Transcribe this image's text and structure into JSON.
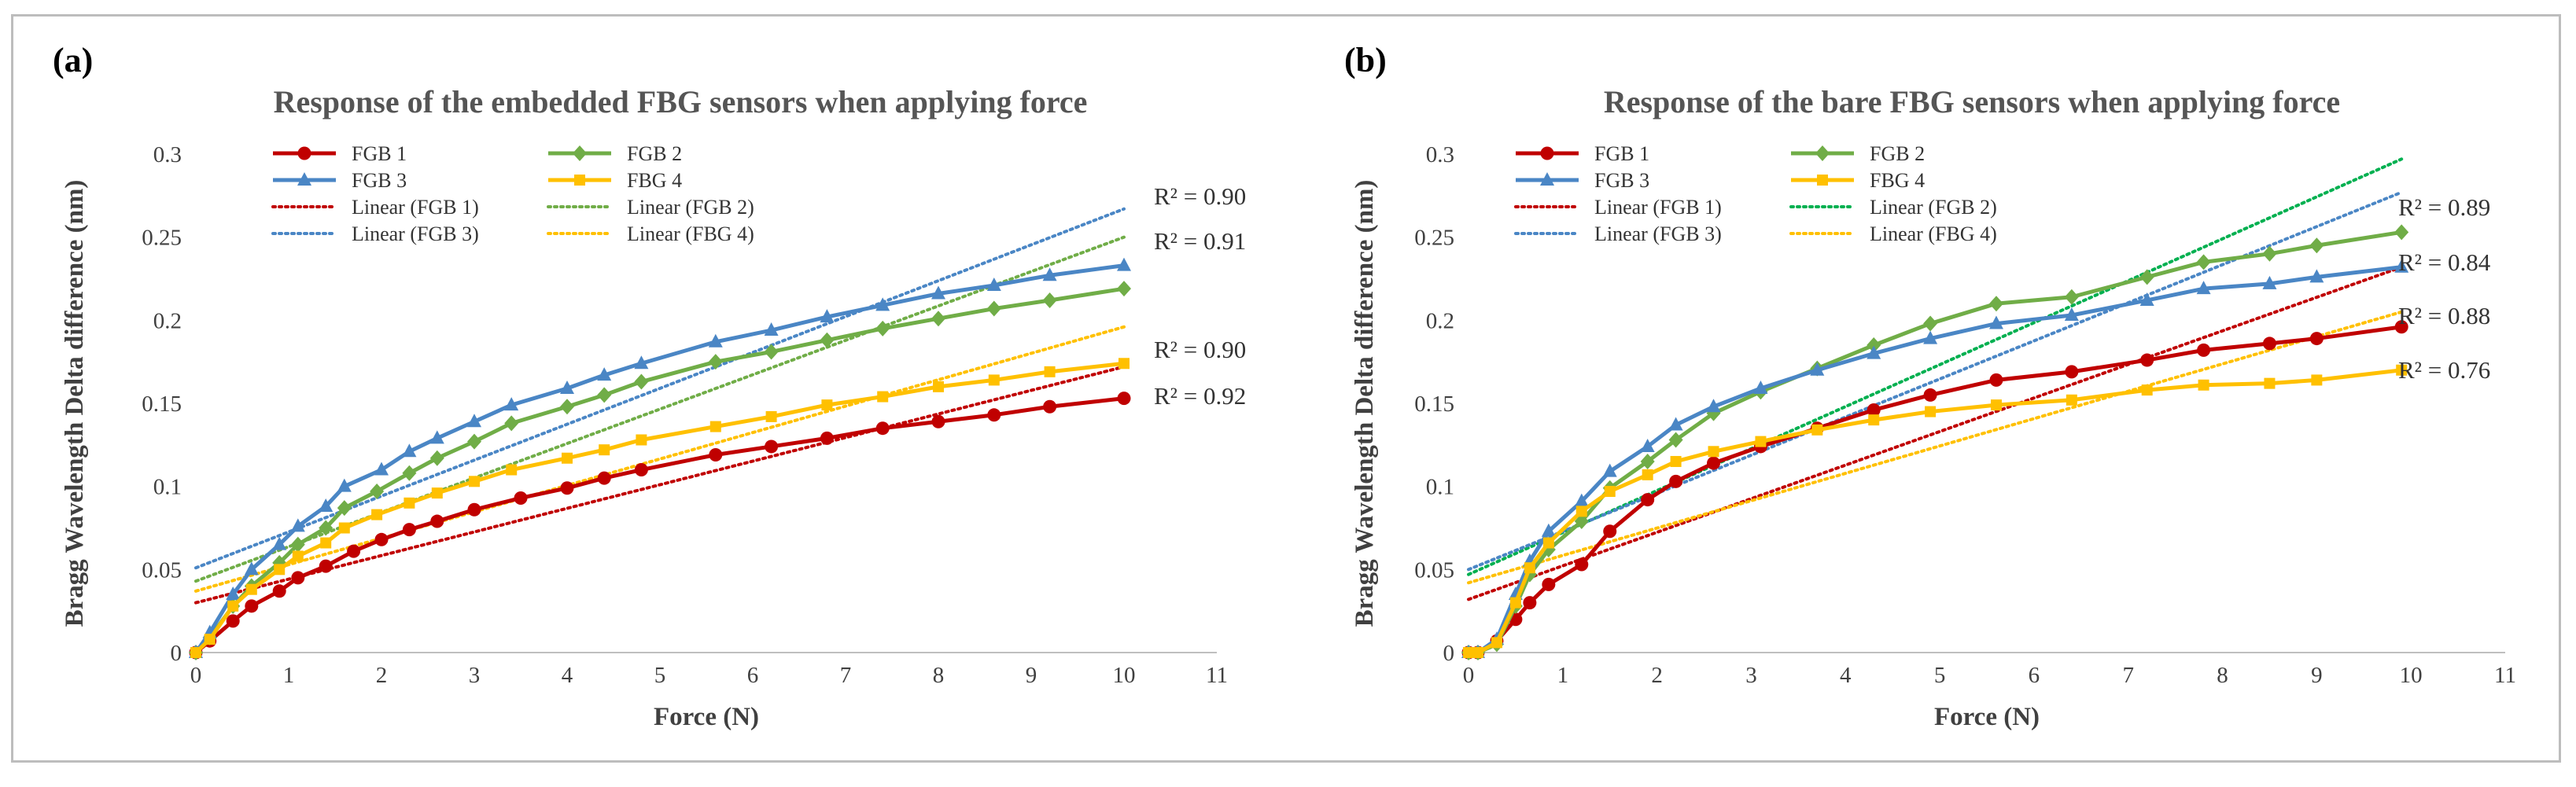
{
  "chart_data": [
    {
      "type": "line",
      "panel_label": "(a)",
      "title": "Response of the embedded FBG sensors when applying force",
      "xlabel": "Force (N)",
      "ylabel": "Bragg Wavelength Delta difference (nm)",
      "xlim": [
        0,
        11
      ],
      "ylim": [
        0,
        0.3
      ],
      "xticks": [
        "0",
        "1",
        "2",
        "3",
        "4",
        "5",
        "6",
        "7",
        "8",
        "9",
        "10",
        "11"
      ],
      "yticks": [
        "0",
        "0.05",
        "0.1",
        "0.15",
        "0.2",
        "0.25",
        "0.3"
      ],
      "grid": false,
      "legend_position": "top-left",
      "series": [
        {
          "name": "FGB 1",
          "color": "#c00000",
          "marker": "circle",
          "x": [
            0,
            0.15,
            0.4,
            0.6,
            0.9,
            1.1,
            1.4,
            1.7,
            2.0,
            2.3,
            2.6,
            3.0,
            3.5,
            4.0,
            4.4,
            4.8,
            5.6,
            6.2,
            6.8,
            7.4,
            8.0,
            8.6,
            9.2,
            10.0
          ],
          "y": [
            0,
            0.007,
            0.019,
            0.028,
            0.037,
            0.045,
            0.052,
            0.061,
            0.068,
            0.074,
            0.079,
            0.086,
            0.093,
            0.099,
            0.105,
            0.11,
            0.119,
            0.124,
            0.129,
            0.135,
            0.139,
            0.143,
            0.148,
            0.153
          ]
        },
        {
          "name": "FGB 2",
          "color": "#70ad47",
          "marker": "diamond",
          "x": [
            0,
            0.15,
            0.4,
            0.6,
            0.9,
            1.1,
            1.4,
            1.6,
            1.95,
            2.3,
            2.6,
            3.0,
            3.4,
            4.0,
            4.4,
            4.8,
            5.6,
            6.2,
            6.8,
            7.4,
            8.0,
            8.6,
            9.2,
            10.0
          ],
          "y": [
            0,
            0.009,
            0.028,
            0.04,
            0.054,
            0.065,
            0.075,
            0.087,
            0.097,
            0.108,
            0.117,
            0.127,
            0.138,
            0.148,
            0.155,
            0.163,
            0.175,
            0.181,
            0.188,
            0.195,
            0.201,
            0.207,
            0.212,
            0.219
          ]
        },
        {
          "name": "FGB 3",
          "color": "#4a86c5",
          "marker": "triangle",
          "x": [
            0,
            0.15,
            0.4,
            0.6,
            0.9,
            1.1,
            1.4,
            1.6,
            2.0,
            2.3,
            2.6,
            3.0,
            3.4,
            4.0,
            4.4,
            4.8,
            5.6,
            6.2,
            6.8,
            7.4,
            8.0,
            8.6,
            9.2,
            10.0
          ],
          "y": [
            0,
            0.012,
            0.035,
            0.05,
            0.065,
            0.076,
            0.088,
            0.1,
            0.11,
            0.121,
            0.129,
            0.139,
            0.149,
            0.159,
            0.167,
            0.174,
            0.187,
            0.194,
            0.202,
            0.209,
            0.216,
            0.221,
            0.227,
            0.233
          ]
        },
        {
          "name": "FBG 4",
          "color": "#ffc000",
          "marker": "square",
          "x": [
            0,
            0.15,
            0.4,
            0.6,
            0.9,
            1.1,
            1.4,
            1.6,
            1.95,
            2.3,
            2.6,
            3.0,
            3.4,
            4.0,
            4.4,
            4.8,
            5.6,
            6.2,
            6.8,
            7.4,
            8.0,
            8.6,
            9.2,
            10.0
          ],
          "y": [
            0,
            0.008,
            0.028,
            0.038,
            0.05,
            0.058,
            0.066,
            0.075,
            0.083,
            0.09,
            0.096,
            0.103,
            0.11,
            0.117,
            0.122,
            0.128,
            0.136,
            0.142,
            0.149,
            0.154,
            0.16,
            0.164,
            0.169,
            0.174
          ]
        }
      ],
      "trendlines": [
        {
          "name": "Linear (FGB 1)",
          "color": "#c00000",
          "x": [
            0,
            10
          ],
          "y": [
            0.03,
            0.172
          ],
          "r2": "R² = 0.92"
        },
        {
          "name": "Linear (FGB 2)",
          "color": "#70ad47",
          "x": [
            0,
            10
          ],
          "y": [
            0.043,
            0.25
          ],
          "r2": "R² = 0.91"
        },
        {
          "name": "Linear (FGB 3)",
          "color": "#4a86c5",
          "x": [
            0,
            10
          ],
          "y": [
            0.051,
            0.267
          ],
          "r2": "R² = 0.90"
        },
        {
          "name": "Linear (FBG 4)",
          "color": "#ffc000",
          "x": [
            0,
            10
          ],
          "y": [
            0.037,
            0.196
          ],
          "r2": "R² = 0.90"
        }
      ]
    },
    {
      "type": "line",
      "panel_label": "(b)",
      "title": "Response of the bare FBG sensors when applying force",
      "xlabel": "Force (N)",
      "ylabel": "Bragg Wavelength Delta difference (nm)",
      "xlim": [
        0,
        11
      ],
      "ylim": [
        0,
        0.3
      ],
      "xticks": [
        "0",
        "1",
        "2",
        "3",
        "4",
        "5",
        "6",
        "7",
        "8",
        "9",
        "10",
        "11"
      ],
      "yticks": [
        "0",
        "0.05",
        "0.1",
        "0.15",
        "0.2",
        "0.25",
        "0.3"
      ],
      "grid": false,
      "legend_position": "top-left",
      "series": [
        {
          "name": "FGB 1",
          "color": "#c00000",
          "marker": "circle",
          "x": [
            0,
            0.1,
            0.3,
            0.5,
            0.65,
            0.85,
            1.2,
            1.5,
            1.9,
            2.2,
            2.6,
            3.1,
            3.7,
            4.3,
            4.9,
            5.6,
            6.4,
            7.2,
            7.8,
            8.5,
            9.0,
            9.9
          ],
          "y": [
            0,
            0,
            0.007,
            0.02,
            0.03,
            0.041,
            0.053,
            0.073,
            0.092,
            0.103,
            0.114,
            0.124,
            0.135,
            0.146,
            0.155,
            0.164,
            0.169,
            0.176,
            0.182,
            0.186,
            0.189,
            0.196
          ]
        },
        {
          "name": "FGB 2",
          "color": "#70ad47",
          "marker": "diamond",
          "x": [
            0,
            0.1,
            0.3,
            0.5,
            0.65,
            0.85,
            1.2,
            1.5,
            1.9,
            2.2,
            2.6,
            3.1,
            3.7,
            4.3,
            4.9,
            5.6,
            6.4,
            7.2,
            7.8,
            8.5,
            9.0,
            9.9
          ],
          "y": [
            0,
            0,
            0.005,
            0.028,
            0.047,
            0.062,
            0.079,
            0.099,
            0.115,
            0.128,
            0.144,
            0.157,
            0.171,
            0.185,
            0.198,
            0.21,
            0.214,
            0.226,
            0.235,
            0.24,
            0.245,
            0.253
          ]
        },
        {
          "name": "FGB 3",
          "color": "#4a86c5",
          "marker": "triangle",
          "x": [
            0,
            0.1,
            0.3,
            0.5,
            0.65,
            0.85,
            1.2,
            1.5,
            1.9,
            2.2,
            2.6,
            3.1,
            3.7,
            4.3,
            4.9,
            5.6,
            6.4,
            7.2,
            7.8,
            8.5,
            9.0,
            9.9
          ],
          "y": [
            0,
            0,
            0.008,
            0.035,
            0.055,
            0.073,
            0.091,
            0.109,
            0.124,
            0.137,
            0.148,
            0.159,
            0.17,
            0.18,
            0.189,
            0.198,
            0.203,
            0.212,
            0.219,
            0.222,
            0.226,
            0.232
          ]
        },
        {
          "name": "FBG 4",
          "color": "#ffc000",
          "marker": "square",
          "x": [
            0,
            0.1,
            0.3,
            0.5,
            0.65,
            0.85,
            1.2,
            1.5,
            1.9,
            2.2,
            2.6,
            3.1,
            3.7,
            4.3,
            4.9,
            5.6,
            6.4,
            7.2,
            7.8,
            8.5,
            9.0,
            9.9
          ],
          "y": [
            0,
            0,
            0.006,
            0.03,
            0.051,
            0.066,
            0.085,
            0.097,
            0.107,
            0.115,
            0.121,
            0.127,
            0.134,
            0.14,
            0.145,
            0.149,
            0.152,
            0.158,
            0.161,
            0.162,
            0.164,
            0.17
          ]
        }
      ],
      "trendlines": [
        {
          "name": "Linear (FGB 1)",
          "color": "#c00000",
          "x": [
            0,
            9.9
          ],
          "y": [
            0.032,
            0.232
          ],
          "r2": "R² = 0.88"
        },
        {
          "name": "Linear (FGB 2)",
          "color": "#00b050",
          "x": [
            0,
            9.9
          ],
          "y": [
            0.047,
            0.297
          ],
          "r2": "R² = 0.89"
        },
        {
          "name": "Linear (FGB 3)",
          "color": "#4a86c5",
          "x": [
            0,
            9.9
          ],
          "y": [
            0.05,
            0.277
          ],
          "r2": "R² = 0.84"
        },
        {
          "name": "Linear (FBG 4)",
          "color": "#ffc000",
          "x": [
            0,
            9.9
          ],
          "y": [
            0.042,
            0.205
          ],
          "r2": "R² = 0.76"
        }
      ]
    }
  ]
}
